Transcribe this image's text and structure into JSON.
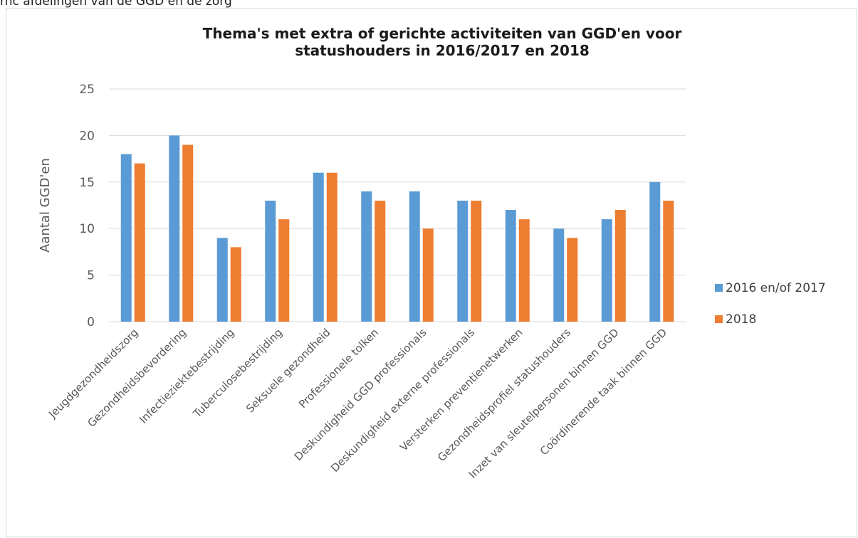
{
  "page": {
    "header_text": "rnc afdelingen van de GGD en de zorg"
  },
  "chart_data": {
    "type": "bar",
    "title_lines": [
      "Thema's met extra of gerichte activiteiten van GGD'en voor",
      "statushouders in 2016/2017 en 2018"
    ],
    "xlabel": "",
    "ylabel": "Aantal GGD'en",
    "ylim": [
      0,
      25
    ],
    "yticks": [
      0,
      5,
      10,
      15,
      20,
      25
    ],
    "grid": true,
    "legend_position": "right",
    "categories": [
      "Jeugdgezondheidszorg",
      "Gezondheidsbevordering",
      "Infectieziektebestrijding",
      "Tuberculosebestrijding",
      "Seksuele gezondheid",
      "Professionele tolken",
      "Deskundigheid GGD professionals",
      "Deskundigheid externe professionals",
      "Versterken preventienetwerken",
      "Gezondheidsprofiel statushouders",
      "Inzet van sleutelpersonen binnen GGD",
      "Coördinerende taak binnen GGD"
    ],
    "series": [
      {
        "name": "2016 en/of 2017",
        "color": "#5b9bd5",
        "values": [
          18,
          20,
          9,
          13,
          16,
          14,
          14,
          13,
          12,
          10,
          11,
          15
        ]
      },
      {
        "name": "2018",
        "color": "#ed7d31",
        "values": [
          17,
          19,
          8,
          11,
          16,
          13,
          10,
          13,
          11,
          9,
          12,
          13
        ]
      }
    ]
  }
}
